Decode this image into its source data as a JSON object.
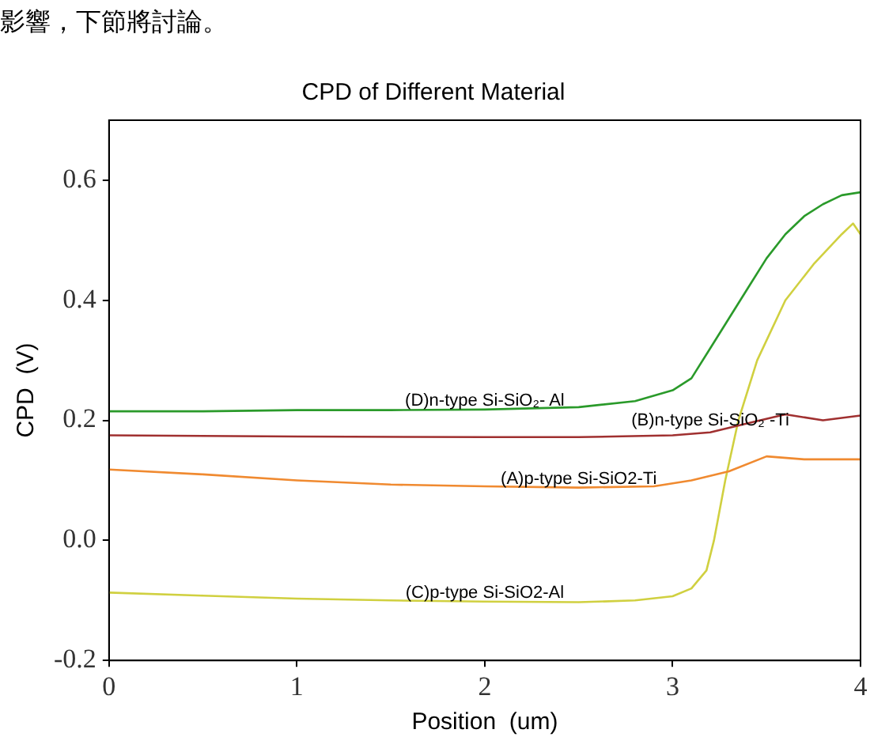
{
  "chart_data": {
    "type": "line",
    "title": "CPD of Different Material",
    "xlabel": "Position  (um)",
    "ylabel": "CPD  (V)",
    "xlim": [
      0,
      4
    ],
    "xticks": [
      0,
      1,
      2,
      3,
      4
    ],
    "ylim": [
      -0.2,
      0.7
    ],
    "yticks": [
      {
        "value": -0.2,
        "label": "-0.2"
      },
      {
        "value": 0,
        "label": "0.0"
      },
      0.2,
      0.4,
      0.6
    ],
    "grid": false,
    "legend": false,
    "marker": "none",
    "line_style": "solid",
    "annotations": [
      "影響，下節將討論。",
      {
        "text": "(D)n-type Si-SiO₂- Al",
        "x": 2,
        "y": 0.218
      },
      {
        "text": "(B)n-type Si-SiO₂ -Ti",
        "x": 3.2,
        "y": 0.185
      },
      {
        "text": "(A)p-type Si-SiO2-Ti",
        "x": 2.5,
        "y": 0.088
      },
      {
        "text": "(C)p-type Si-SiO2-Al",
        "x": 2,
        "y": -0.102
      }
    ],
    "series": [
      {
        "color": "#2a9a2a",
        "x": [
          0,
          0.5,
          1,
          1.5,
          2,
          2.5,
          2.8,
          3.0,
          3.1,
          3.2,
          3.3,
          3.4,
          3.5,
          3.6,
          3.7,
          3.8,
          3.9,
          4.0
        ],
        "values": [
          0.215,
          0.215,
          0.217,
          0.217,
          0.218,
          0.222,
          0.232,
          0.25,
          0.27,
          0.32,
          0.37,
          0.42,
          0.47,
          0.51,
          0.54,
          0.56,
          0.575,
          0.58
        ]
      },
      {
        "color": "#a03030",
        "x": [
          0,
          1,
          2,
          2.5,
          3,
          3.2,
          3.4,
          3.6,
          3.8,
          4.0
        ],
        "values": [
          0.175,
          0.173,
          0.172,
          0.172,
          0.175,
          0.18,
          0.195,
          0.21,
          0.2,
          0.208
        ]
      },
      {
        "color": "#f08a30",
        "x": [
          0,
          0.5,
          1,
          1.5,
          2,
          2.5,
          2.9,
          3.1,
          3.3,
          3.5,
          3.7,
          4.0
        ],
        "values": [
          0.118,
          0.11,
          0.1,
          0.093,
          0.09,
          0.088,
          0.09,
          0.1,
          0.115,
          0.14,
          0.135,
          0.135
        ]
      },
      {
        "color": "#d0d040",
        "x": [
          0,
          0.5,
          1,
          1.5,
          2,
          2.5,
          2.8,
          3.0,
          3.1,
          3.18,
          3.22,
          3.28,
          3.35,
          3.45,
          3.6,
          3.75,
          3.9,
          3.96,
          4.0
        ],
        "values": [
          -0.087,
          -0.092,
          -0.097,
          -0.1,
          -0.102,
          -0.103,
          -0.1,
          -0.093,
          -0.08,
          -0.05,
          0,
          0.1,
          0.2,
          0.3,
          0.4,
          0.46,
          0.51,
          0.528,
          0.51
        ]
      }
    ]
  }
}
